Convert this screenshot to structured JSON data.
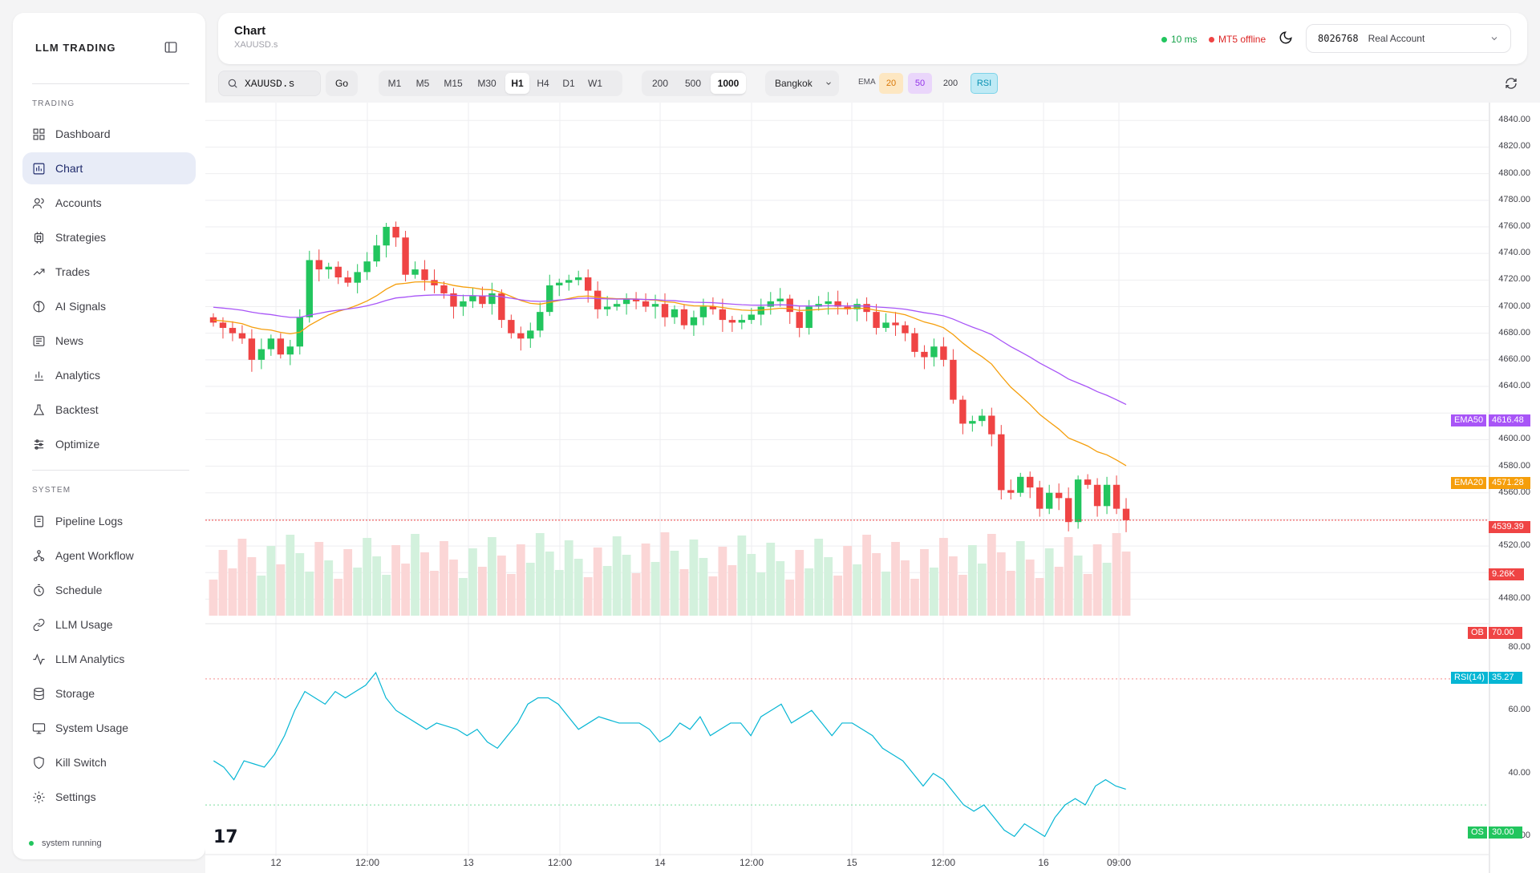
{
  "sidebar": {
    "brand": "LLM TRADING",
    "trading_label": "TRADING",
    "system_label": "SYSTEM",
    "trading_items": [
      {
        "label": "Dashboard",
        "icon": "dashboard-icon"
      },
      {
        "label": "Chart",
        "icon": "chart-icon",
        "active": true
      },
      {
        "label": "Accounts",
        "icon": "users-icon"
      },
      {
        "label": "Strategies",
        "icon": "cpu-icon"
      },
      {
        "label": "Trades",
        "icon": "trending-icon"
      },
      {
        "label": "AI Signals",
        "icon": "brain-icon"
      },
      {
        "label": "News",
        "icon": "newspaper-icon"
      },
      {
        "label": "Analytics",
        "icon": "bar-chart-icon"
      },
      {
        "label": "Backtest",
        "icon": "flask-icon"
      },
      {
        "label": "Optimize",
        "icon": "sliders-icon"
      }
    ],
    "system_items": [
      {
        "label": "Pipeline Logs",
        "icon": "scroll-icon"
      },
      {
        "label": "Agent Workflow",
        "icon": "workflow-icon"
      },
      {
        "label": "Schedule",
        "icon": "timer-icon"
      },
      {
        "label": "LLM Usage",
        "icon": "link-icon"
      },
      {
        "label": "LLM Analytics",
        "icon": "activity-icon"
      },
      {
        "label": "Storage",
        "icon": "database-icon"
      },
      {
        "label": "System Usage",
        "icon": "monitor-icon"
      },
      {
        "label": "Kill Switch",
        "icon": "shield-icon"
      },
      {
        "label": "Settings",
        "icon": "gear-icon"
      }
    ],
    "status": "system running"
  },
  "header": {
    "title": "Chart",
    "subtitle": "XAUUSD.s",
    "latency": "10 ms",
    "mt5_status": "MT5 offline",
    "account_number": "8026768",
    "account_type": "Real Account"
  },
  "toolbar": {
    "symbol_value": "XAUUSD.s",
    "go_label": "Go",
    "timeframes": [
      "M1",
      "M5",
      "M15",
      "M30",
      "H1",
      "H4",
      "D1",
      "W1"
    ],
    "selected_timeframe": "H1",
    "bar_counts": [
      "200",
      "500",
      "1000"
    ],
    "selected_bar_count": "1000",
    "timezone": "Bangkok",
    "ema_label": "EMA",
    "ema_periods": [
      "20",
      "50",
      "200"
    ],
    "rsi_label": "RSI"
  },
  "colors": {
    "up": "#22c55e",
    "down": "#ef4444",
    "ema20": "#f59e0b",
    "ema50": "#a855f7",
    "rsi": "#06b6d4",
    "accent_active": "#e8ecf7"
  },
  "chart_data": {
    "type": "candlestick",
    "symbol": "XAUUSD.s",
    "timeframe": "H1",
    "x_ticks": [
      "12",
      "12:00",
      "13",
      "12:00",
      "14",
      "12:00",
      "15",
      "12:00",
      "16",
      "09:00"
    ],
    "y_ticks": [
      "4840.00",
      "4820.00",
      "4800.00",
      "4780.00",
      "4760.00",
      "4740.00",
      "4720.00",
      "4700.00",
      "4680.00",
      "4660.00",
      "4640.00",
      "4600.00",
      "4580.00",
      "4560.00",
      "4520.00",
      "4480.00"
    ],
    "ylim": [
      4470,
      4845
    ],
    "ohlc_close": [
      4688,
      4684,
      4680,
      4676,
      4660,
      4668,
      4676,
      4664,
      4670,
      4692,
      4735,
      4728,
      4730,
      4722,
      4718,
      4726,
      4734,
      4746,
      4760,
      4752,
      4724,
      4728,
      4720,
      4716,
      4710,
      4700,
      4704,
      4708,
      4702,
      4710,
      4690,
      4680,
      4676,
      4682,
      4696,
      4716,
      4718,
      4720,
      4722,
      4712,
      4698,
      4700,
      4702,
      4706,
      4704,
      4700,
      4702,
      4692,
      4698,
      4686,
      4692,
      4700,
      4698,
      4690,
      4688,
      4690,
      4694,
      4700,
      4704,
      4706,
      4696,
      4684,
      4700,
      4702,
      4704,
      4700,
      4698,
      4702,
      4696,
      4684,
      4688,
      4686,
      4680,
      4666,
      4662,
      4670,
      4660,
      4630,
      4612,
      4614,
      4618,
      4604,
      4562,
      4560,
      4572,
      4564,
      4548,
      4560,
      4556,
      4538,
      4570,
      4566,
      4550,
      4566,
      4548,
      4539.39
    ],
    "current_price": "4539.39",
    "volume_label": "9.26K",
    "ema20_label": "EMA20",
    "ema20_value": "4571.28",
    "ema50_label": "EMA50",
    "ema50_value": "4616.48",
    "rsi_ticks": [
      "80.00",
      "60.00",
      "40.00",
      "20.00"
    ],
    "rsi_label": "RSI(14)",
    "rsi_value": "35.27",
    "ob_label": "OB",
    "ob_value": "70.00",
    "os_label": "OS",
    "os_value": "30.00",
    "rsi_values": [
      44,
      42,
      38,
      44,
      43,
      42,
      46,
      52,
      60,
      66,
      64,
      62,
      66,
      64,
      66,
      68,
      72,
      64,
      60,
      58,
      56,
      54,
      56,
      55,
      54,
      52,
      54,
      50,
      48,
      52,
      56,
      62,
      64,
      64,
      62,
      58,
      54,
      56,
      58,
      57,
      56,
      56,
      56,
      54,
      50,
      52,
      56,
      54,
      58,
      52,
      54,
      56,
      56,
      52,
      58,
      60,
      62,
      56,
      58,
      60,
      56,
      52,
      56,
      56,
      54,
      52,
      48,
      46,
      44,
      40,
      36,
      40,
      38,
      34,
      30,
      28,
      30,
      26,
      22,
      20,
      24,
      22,
      20,
      26,
      30,
      32,
      30,
      36,
      38,
      36,
      35
    ]
  }
}
